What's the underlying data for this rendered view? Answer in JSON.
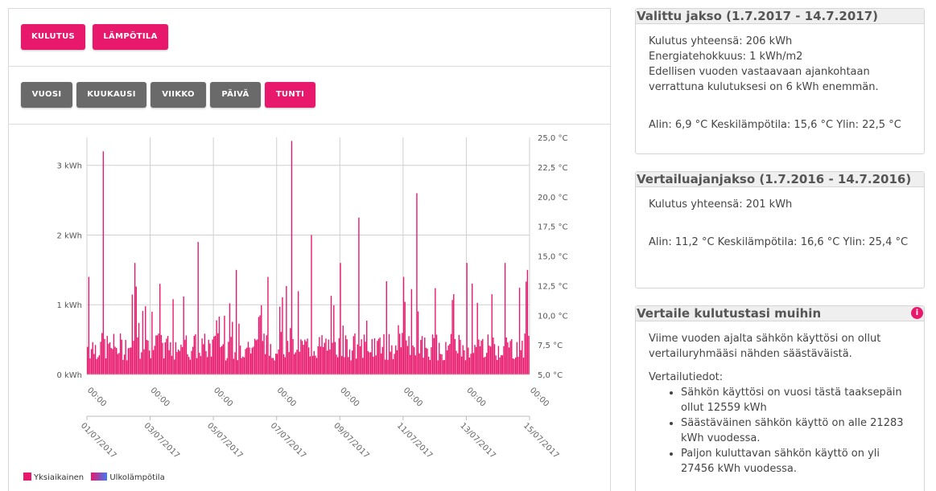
{
  "metric_tabs": [
    {
      "label": "KULUTUS",
      "active": true
    },
    {
      "label": "LÄMPÖTILA",
      "active": true
    }
  ],
  "period_tabs": [
    {
      "label": "VUOSI",
      "active": false
    },
    {
      "label": "KUUKAUSI",
      "active": false
    },
    {
      "label": "VIIKKO",
      "active": false
    },
    {
      "label": "PÄIVÄ",
      "active": false
    },
    {
      "label": "TUNTI",
      "active": true
    }
  ],
  "colors": {
    "accent": "#e8186d",
    "inactive": "#6a6a6a",
    "temperature": "#3f7af0"
  },
  "chart_data": {
    "type": "bar",
    "ylabel_left_ticks": [
      "0 kWh",
      "1 kWh",
      "2 kWh",
      "3 kWh"
    ],
    "ylim_left": [
      0,
      3.4
    ],
    "ylabel_right_ticks": [
      "5,0 °C",
      "7,5 °C",
      "10,0 °C",
      "12,5 °C",
      "15,0 °C",
      "17,5 °C",
      "20,0 °C",
      "22,5 °C",
      "25,0 °C"
    ],
    "ylim_right": [
      5.0,
      25.0
    ],
    "x_time_labels": [
      "00:00",
      "00:00",
      "00:00",
      "00:00",
      "00:00",
      "00:00",
      "00:00",
      "00:00"
    ],
    "x_date_labels": [
      "01/07/2017",
      "03/07/2017",
      "05/07/2017",
      "07/07/2017",
      "09/07/2017",
      "11/07/2017",
      "13/07/2017",
      "15/07/2017"
    ],
    "x_range": [
      "01/07/2017",
      "15/07/2017"
    ],
    "grid": true,
    "series": [
      {
        "name": "Yksiaikainen",
        "color": "#e8186d",
        "unit": "kWh",
        "resolution": "hour",
        "peaks": [
          {
            "day": 0.05,
            "value": 1.4
          },
          {
            "day": 0.5,
            "value": 3.2
          },
          {
            "day": 1.5,
            "value": 1.6
          },
          {
            "day": 2.3,
            "value": 1.3
          },
          {
            "day": 3.5,
            "value": 1.9
          },
          {
            "day": 4.7,
            "value": 1.5
          },
          {
            "day": 5.7,
            "value": 1.4
          },
          {
            "day": 6.45,
            "value": 3.35
          },
          {
            "day": 7.1,
            "value": 2.0
          },
          {
            "day": 8.0,
            "value": 1.6
          },
          {
            "day": 8.6,
            "value": 2.25
          },
          {
            "day": 10.0,
            "value": 1.4
          },
          {
            "day": 10.4,
            "value": 2.6
          },
          {
            "day": 12.0,
            "value": 1.6
          },
          {
            "day": 13.2,
            "value": 1.6
          },
          {
            "day": 13.9,
            "value": 1.5
          }
        ],
        "baseline_range": [
          0.2,
          0.6
        ]
      },
      {
        "name": "Ulkolämpötila",
        "color": "#3f7af0",
        "unit": "°C"
      }
    ]
  },
  "legend": [
    {
      "label": "Yksiaikainen"
    },
    {
      "label": "Ulkolämpötila"
    }
  ],
  "selected_period": {
    "title": "Valittu jakso  (1.7.2017 - 14.7.2017)",
    "lines": [
      "Kulutus yhteensä: 206 kWh",
      "Energiatehokkuus: 1 kWh/m2",
      "Edellisen vuoden vastaavaan ajankohtaan verrattuna kulutuksesi on 6 kWh enemmän."
    ],
    "temps": "Alin: 6,9 °C Keskilämpötila: 15,6 °C Ylin: 22,5 °C"
  },
  "comparison_period": {
    "title": "Vertailuajanjakso (1.7.2016 - 14.7.2016)",
    "lines": [
      "Kulutus yhteensä: 201 kWh"
    ],
    "temps": "Alin: 11,2 °C Keskilämpötila: 16,6 °C Ylin: 25,4 °C"
  },
  "compare_others": {
    "title": "Vertaile kulutustasi muihin",
    "info_icon": "i",
    "intro": "Viime vuoden ajalta sähkön käyttösi on ollut vertailuryhmääsi nähden säästäväistä.",
    "details_label": "Vertailutiedot:",
    "items": [
      "Sähkön käyttösi on vuosi tästä taaksepäin ollut 12559 kWh",
      "Säästäväinen sähkön käyttö on alle 21283 kWh vuodessa.",
      "Paljon kuluttavan sähkön käyttö on yli 27456 kWh vuodessa."
    ]
  }
}
